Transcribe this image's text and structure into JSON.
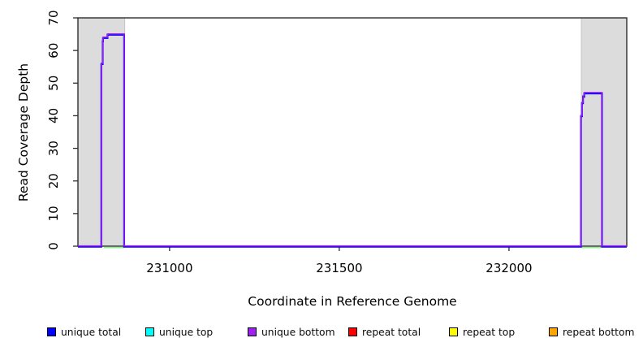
{
  "chart_data": {
    "type": "line",
    "title": "",
    "xlabel": "Coordinate in Reference Genome",
    "ylabel": "Read Coverage Depth",
    "xlim": [
      230730,
      232347
    ],
    "ylim": [
      0,
      70
    ],
    "grid": false,
    "xticks": {
      "values": [
        231000,
        231500,
        232000
      ],
      "labels": [
        "231000",
        "231500",
        "232000"
      ]
    },
    "yticks": {
      "values": [
        0,
        10,
        20,
        30,
        40,
        50,
        60,
        70
      ],
      "labels": [
        "0",
        "10",
        "20",
        "30",
        "40",
        "50",
        "60",
        "70"
      ]
    },
    "shaded_regions": [
      {
        "x0": 230730,
        "x1": 230868,
        "fill": "#DCDCDC",
        "border": "#BEBEBE"
      },
      {
        "x0": 232213,
        "x1": 232347,
        "fill": "#DCDCDC",
        "border": "#BEBEBE"
      }
    ],
    "series": [
      {
        "name": "unique total",
        "color": "#0000FF",
        "points": [
          [
            230730,
            0
          ],
          [
            230799,
            0
          ],
          [
            230799,
            56
          ],
          [
            230803,
            56
          ],
          [
            230803,
            63
          ],
          [
            230804,
            63
          ],
          [
            230804,
            64
          ],
          [
            230817,
            64
          ],
          [
            230817,
            65
          ],
          [
            230866,
            65
          ],
          [
            230866,
            0
          ],
          [
            232212,
            0
          ],
          [
            232212,
            40
          ],
          [
            232215,
            40
          ],
          [
            232215,
            44
          ],
          [
            232218,
            44
          ],
          [
            232218,
            46
          ],
          [
            232222,
            46
          ],
          [
            232222,
            47
          ],
          [
            232274,
            47
          ],
          [
            232274,
            0
          ],
          [
            232347,
            0
          ]
        ]
      },
      {
        "name": "unique bottom",
        "color": "#A020F0",
        "points": [
          [
            230730,
            0
          ],
          [
            230799,
            0
          ],
          [
            230799,
            56
          ],
          [
            230803,
            56
          ],
          [
            230803,
            63
          ],
          [
            230804,
            63
          ],
          [
            230804,
            64
          ],
          [
            230817,
            64
          ],
          [
            230817,
            65
          ],
          [
            230866,
            65
          ],
          [
            230866,
            0
          ],
          [
            232212,
            0
          ],
          [
            232212,
            40
          ],
          [
            232215,
            40
          ],
          [
            232215,
            44
          ],
          [
            232218,
            44
          ],
          [
            232218,
            46
          ],
          [
            232222,
            46
          ],
          [
            232222,
            47
          ],
          [
            232274,
            47
          ],
          [
            232274,
            0
          ],
          [
            232347,
            0
          ]
        ]
      }
    ],
    "baseline_overlap_segments": [
      {
        "x0": 230806,
        "x1": 230866,
        "y": 0,
        "color": "#90EE90"
      },
      {
        "x0": 232213,
        "x1": 232272,
        "y": 0,
        "color": "#90EE90"
      }
    ],
    "legend": {
      "position": "bottom",
      "items": [
        {
          "label": "unique total",
          "color": "#0000FF"
        },
        {
          "label": "unique top",
          "color": "#00FFFF"
        },
        {
          "label": "unique bottom",
          "color": "#A020F0"
        },
        {
          "label": "repeat total",
          "color": "#FF0000"
        },
        {
          "label": "repeat top",
          "color": "#FFFF00"
        },
        {
          "label": "repeat bottom",
          "color": "#FFA500"
        }
      ]
    }
  }
}
